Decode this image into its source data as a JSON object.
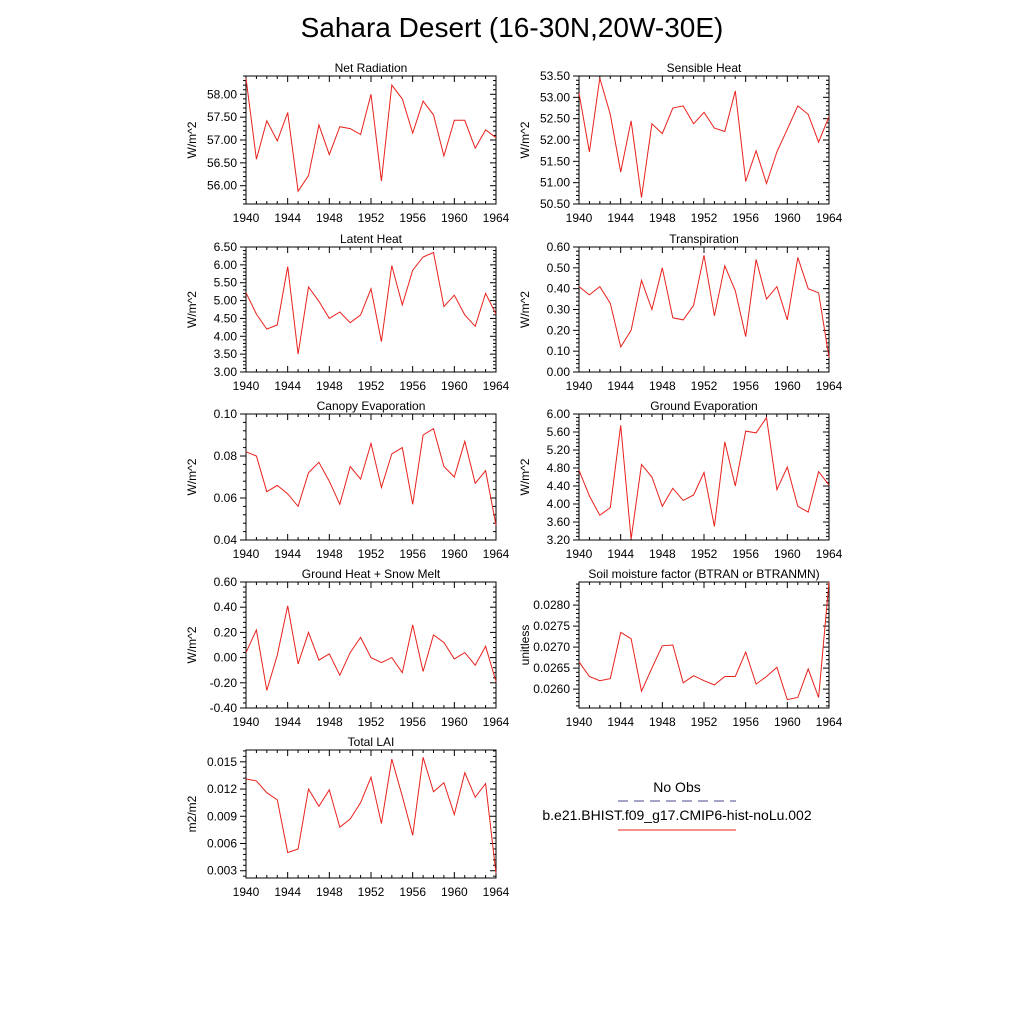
{
  "title": "Sahara Desert (16-30N,20W-30E)",
  "colors": {
    "model": "#e8211c",
    "obs": "#4a4a8c",
    "axis": "#000000"
  },
  "legend": {
    "obs_label": "No Obs",
    "model_label": "b.e21.BHIST.f09_g17.CMIP6-hist-noLu.002"
  },
  "chart_data": [
    {
      "type": "line",
      "title": "Net Radiation",
      "ylabel": "W/m^2",
      "xlim": [
        1940,
        1964
      ],
      "ylim": [
        55.6,
        58.4
      ],
      "xticks": [
        1940,
        1944,
        1948,
        1952,
        1956,
        1960,
        1964
      ],
      "yticks": [
        56.0,
        56.5,
        57.0,
        57.5,
        58.0
      ],
      "ytick_labels": [
        "56.00",
        "56.50",
        "57.00",
        "57.50",
        "58.00"
      ],
      "x": [
        1940,
        1941,
        1942,
        1943,
        1944,
        1945,
        1946,
        1947,
        1948,
        1949,
        1950,
        1951,
        1952,
        1953,
        1954,
        1955,
        1956,
        1957,
        1958,
        1959,
        1960,
        1961,
        1962,
        1963,
        1964
      ],
      "series": [
        {
          "values": [
            58.35,
            56.58,
            57.42,
            56.98,
            57.6,
            55.88,
            56.22,
            57.33,
            56.68,
            57.29,
            57.25,
            57.12,
            58.0,
            56.1,
            58.2,
            57.9,
            57.15,
            57.85,
            57.55,
            56.65,
            57.43,
            57.43,
            56.82,
            57.22,
            57.05
          ]
        }
      ]
    },
    {
      "type": "line",
      "title": "Sensible Heat",
      "ylabel": "W/m^2",
      "xlim": [
        1940,
        1964
      ],
      "ylim": [
        50.5,
        53.5
      ],
      "xticks": [
        1940,
        1944,
        1948,
        1952,
        1956,
        1960,
        1964
      ],
      "yticks": [
        50.5,
        51.0,
        51.5,
        52.0,
        52.5,
        53.0,
        53.5
      ],
      "ytick_labels": [
        "50.50",
        "51.00",
        "51.50",
        "52.00",
        "52.50",
        "53.00",
        "53.50"
      ],
      "x": [
        1940,
        1941,
        1942,
        1943,
        1944,
        1945,
        1946,
        1947,
        1948,
        1949,
        1950,
        1951,
        1952,
        1953,
        1954,
        1955,
        1956,
        1957,
        1958,
        1959,
        1960,
        1961,
        1962,
        1963,
        1964
      ],
      "series": [
        {
          "values": [
            53.1,
            51.72,
            53.45,
            52.6,
            51.25,
            52.45,
            50.65,
            52.38,
            52.15,
            52.75,
            52.8,
            52.38,
            52.65,
            52.28,
            52.2,
            53.15,
            51.03,
            51.75,
            50.98,
            51.72,
            52.25,
            52.8,
            52.6,
            51.95,
            52.55
          ]
        }
      ]
    },
    {
      "type": "line",
      "title": "Latent Heat",
      "ylabel": "W/m^2",
      "xlim": [
        1940,
        1964
      ],
      "ylim": [
        3.0,
        6.5
      ],
      "xticks": [
        1940,
        1944,
        1948,
        1952,
        1956,
        1960,
        1964
      ],
      "yticks": [
        3.0,
        3.5,
        4.0,
        4.5,
        5.0,
        5.5,
        6.0,
        6.5
      ],
      "ytick_labels": [
        "3.00",
        "3.50",
        "4.00",
        "4.50",
        "5.00",
        "5.50",
        "6.00",
        "6.50"
      ],
      "x": [
        1940,
        1941,
        1942,
        1943,
        1944,
        1945,
        1946,
        1947,
        1948,
        1949,
        1950,
        1951,
        1952,
        1953,
        1954,
        1955,
        1956,
        1957,
        1958,
        1959,
        1960,
        1961,
        1962,
        1963,
        1964
      ],
      "series": [
        {
          "values": [
            5.22,
            4.62,
            4.2,
            4.32,
            5.95,
            3.5,
            5.38,
            4.98,
            4.5,
            4.68,
            4.38,
            4.6,
            5.33,
            3.85,
            5.98,
            4.88,
            5.85,
            6.22,
            6.35,
            4.83,
            5.15,
            4.6,
            4.28,
            5.2,
            4.62
          ]
        }
      ]
    },
    {
      "type": "line",
      "title": "Transpiration",
      "ylabel": "W/m^2",
      "xlim": [
        1940,
        1964
      ],
      "ylim": [
        0.0,
        0.6
      ],
      "xticks": [
        1940,
        1944,
        1948,
        1952,
        1956,
        1960,
        1964
      ],
      "yticks": [
        0.0,
        0.1,
        0.2,
        0.3,
        0.4,
        0.5,
        0.6
      ],
      "ytick_labels": [
        "0.00",
        "0.10",
        "0.20",
        "0.30",
        "0.40",
        "0.50",
        "0.60"
      ],
      "x": [
        1940,
        1941,
        1942,
        1943,
        1944,
        1945,
        1946,
        1947,
        1948,
        1949,
        1950,
        1951,
        1952,
        1953,
        1954,
        1955,
        1956,
        1957,
        1958,
        1959,
        1960,
        1961,
        1962,
        1963,
        1964
      ],
      "series": [
        {
          "values": [
            0.41,
            0.37,
            0.41,
            0.33,
            0.12,
            0.2,
            0.44,
            0.3,
            0.5,
            0.26,
            0.25,
            0.32,
            0.56,
            0.27,
            0.51,
            0.39,
            0.17,
            0.54,
            0.35,
            0.41,
            0.25,
            0.55,
            0.4,
            0.38,
            0.07
          ]
        }
      ]
    },
    {
      "type": "line",
      "title": "Canopy Evaporation",
      "ylabel": "W/m^2",
      "xlim": [
        1940,
        1964
      ],
      "ylim": [
        0.04,
        0.1
      ],
      "xticks": [
        1940,
        1944,
        1948,
        1952,
        1956,
        1960,
        1964
      ],
      "yticks": [
        0.04,
        0.06,
        0.08,
        0.1
      ],
      "ytick_labels": [
        "0.04",
        "0.06",
        "0.08",
        "0.10"
      ],
      "x": [
        1940,
        1941,
        1942,
        1943,
        1944,
        1945,
        1946,
        1947,
        1948,
        1949,
        1950,
        1951,
        1952,
        1953,
        1954,
        1955,
        1956,
        1957,
        1958,
        1959,
        1960,
        1961,
        1962,
        1963,
        1964
      ],
      "series": [
        {
          "values": [
            0.082,
            0.08,
            0.063,
            0.066,
            0.062,
            0.056,
            0.072,
            0.077,
            0.068,
            0.057,
            0.075,
            0.069,
            0.086,
            0.065,
            0.081,
            0.084,
            0.057,
            0.09,
            0.093,
            0.075,
            0.07,
            0.087,
            0.067,
            0.073,
            0.047
          ]
        }
      ]
    },
    {
      "type": "line",
      "title": "Ground Evaporation",
      "ylabel": "W/m^2",
      "xlim": [
        1940,
        1964
      ],
      "ylim": [
        3.2,
        6.0
      ],
      "xticks": [
        1940,
        1944,
        1948,
        1952,
        1956,
        1960,
        1964
      ],
      "yticks": [
        3.2,
        3.6,
        4.0,
        4.4,
        4.8,
        5.2,
        5.6,
        6.0
      ],
      "ytick_labels": [
        "3.20",
        "3.60",
        "4.00",
        "4.40",
        "4.80",
        "5.20",
        "5.60",
        "6.00"
      ],
      "x": [
        1940,
        1941,
        1942,
        1943,
        1944,
        1945,
        1946,
        1947,
        1948,
        1949,
        1950,
        1951,
        1952,
        1953,
        1954,
        1955,
        1956,
        1957,
        1958,
        1959,
        1960,
        1961,
        1962,
        1963,
        1964
      ],
      "series": [
        {
          "values": [
            4.75,
            4.18,
            3.75,
            3.92,
            5.75,
            3.22,
            4.88,
            4.6,
            3.95,
            4.35,
            4.08,
            4.2,
            4.7,
            3.5,
            5.38,
            4.4,
            5.62,
            5.58,
            5.92,
            4.32,
            4.82,
            3.95,
            3.82,
            4.72,
            4.42
          ]
        }
      ]
    },
    {
      "type": "line",
      "title": "Ground Heat + Snow Melt",
      "ylabel": "W/m^2",
      "xlim": [
        1940,
        1964
      ],
      "ylim": [
        -0.4,
        0.6
      ],
      "xticks": [
        1940,
        1944,
        1948,
        1952,
        1956,
        1960,
        1964
      ],
      "yticks": [
        -0.4,
        -0.2,
        0.0,
        0.2,
        0.4,
        0.6
      ],
      "ytick_labels": [
        "-0.40",
        "-0.20",
        "0.00",
        "0.20",
        "0.40",
        "0.60"
      ],
      "x": [
        1940,
        1941,
        1942,
        1943,
        1944,
        1945,
        1946,
        1947,
        1948,
        1949,
        1950,
        1951,
        1952,
        1953,
        1954,
        1955,
        1956,
        1957,
        1958,
        1959,
        1960,
        1961,
        1962,
        1963,
        1964
      ],
      "series": [
        {
          "values": [
            0.04,
            0.22,
            -0.26,
            0.02,
            0.41,
            -0.05,
            0.2,
            -0.02,
            0.03,
            -0.14,
            0.04,
            0.16,
            0.0,
            -0.04,
            0.0,
            -0.12,
            0.26,
            -0.11,
            0.18,
            0.12,
            -0.01,
            0.04,
            -0.06,
            0.09,
            -0.19
          ]
        }
      ]
    },
    {
      "type": "line",
      "title": "Soil moisture factor (BTRAN or BTRANMN)",
      "ylabel": "unitless",
      "xlim": [
        1940,
        1964
      ],
      "ylim": [
        0.02555,
        0.02855
      ],
      "xticks": [
        1940,
        1944,
        1948,
        1952,
        1956,
        1960,
        1964
      ],
      "yticks": [
        0.026,
        0.0265,
        0.027,
        0.0275,
        0.028
      ],
      "ytick_labels": [
        "0.0260",
        "0.0265",
        "0.0270",
        "0.0275",
        "0.0280"
      ],
      "x": [
        1940,
        1941,
        1942,
        1943,
        1944,
        1945,
        1946,
        1947,
        1948,
        1949,
        1950,
        1951,
        1952,
        1953,
        1954,
        1955,
        1956,
        1957,
        1958,
        1959,
        1960,
        1961,
        1962,
        1963,
        1964
      ],
      "series": [
        {
          "values": [
            0.02665,
            0.0263,
            0.0262,
            0.02625,
            0.02735,
            0.0272,
            0.02595,
            0.0265,
            0.02703,
            0.02705,
            0.02615,
            0.02632,
            0.0262,
            0.0261,
            0.0263,
            0.0263,
            0.02688,
            0.02612,
            0.0263,
            0.02652,
            0.02575,
            0.0258,
            0.02648,
            0.0258,
            0.02855
          ]
        }
      ]
    },
    {
      "type": "line",
      "title": "Total LAI",
      "ylabel": "m2/m2",
      "xlim": [
        1940,
        1964
      ],
      "ylim": [
        0.0022,
        0.0163
      ],
      "xticks": [
        1940,
        1944,
        1948,
        1952,
        1956,
        1960,
        1964
      ],
      "yticks": [
        0.003,
        0.006,
        0.009,
        0.012,
        0.015
      ],
      "ytick_labels": [
        "0.003",
        "0.006",
        "0.009",
        "0.012",
        "0.015"
      ],
      "x": [
        1940,
        1941,
        1942,
        1943,
        1944,
        1945,
        1946,
        1947,
        1948,
        1949,
        1950,
        1951,
        1952,
        1953,
        1954,
        1955,
        1956,
        1957,
        1958,
        1959,
        1960,
        1961,
        1962,
        1963,
        1964
      ],
      "series": [
        {
          "values": [
            0.0131,
            0.0129,
            0.0116,
            0.0108,
            0.005,
            0.0054,
            0.012,
            0.0101,
            0.0119,
            0.0078,
            0.0087,
            0.0105,
            0.0133,
            0.0082,
            0.0153,
            0.0112,
            0.0069,
            0.0155,
            0.0117,
            0.0127,
            0.0092,
            0.0138,
            0.0111,
            0.0126,
            0.0027
          ]
        }
      ]
    }
  ]
}
